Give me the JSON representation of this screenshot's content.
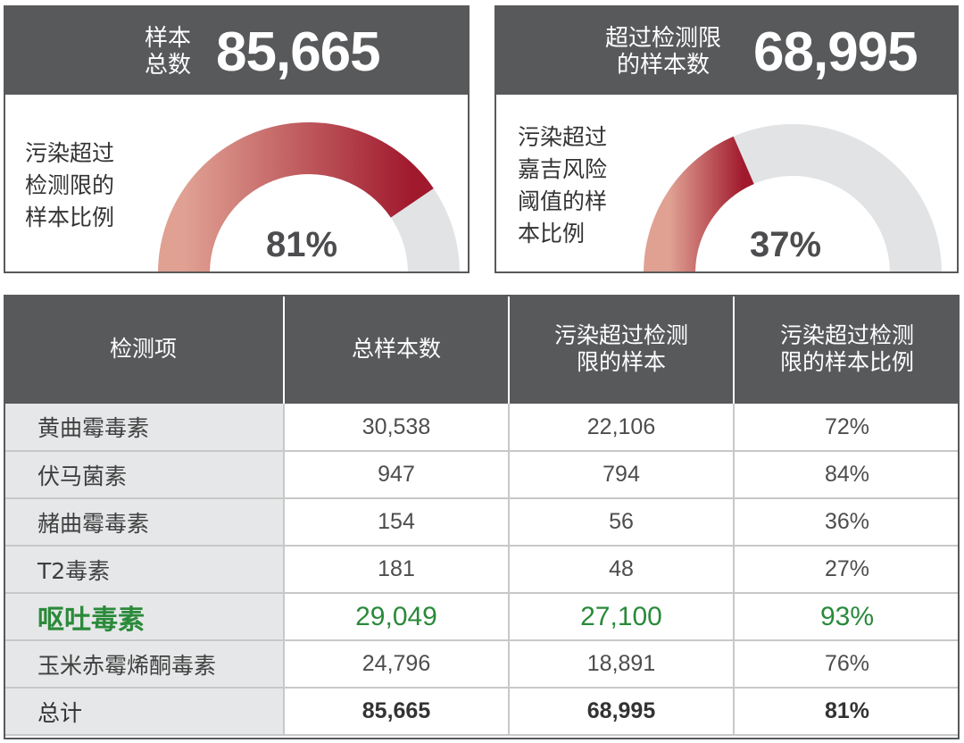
{
  "cards": [
    {
      "label_lines": [
        "样本",
        "总数"
      ],
      "value": "85,665",
      "desc_lines": [
        "污染超过",
        "检测限的",
        "样本比例"
      ],
      "percent": 81,
      "percent_text": "81%"
    },
    {
      "label_lines": [
        "超过检测限",
        "的样本数"
      ],
      "value": "68,995",
      "desc_lines": [
        "污染超过",
        "嘉吉风险",
        "阈值的样",
        "本比例"
      ],
      "percent": 37,
      "percent_text": "37%"
    }
  ],
  "colors": {
    "header_bg": "#58595b",
    "gauge_track": "#e2e3e5",
    "gauge_start": "#e0a193",
    "gauge_end": "#a0192d",
    "highlight": "#2a8a3a",
    "name_col_bg": "#e6e7e8"
  },
  "table": {
    "headers": [
      [
        "检测项"
      ],
      [
        "总样本数"
      ],
      [
        "污染超过检测",
        "限的样本"
      ],
      [
        "污染超过检测",
        "限的样本比例"
      ]
    ],
    "rows": [
      [
        "黄曲霉毒素",
        "30,538",
        "22,106",
        "72%"
      ],
      [
        "伏马菌素",
        "947",
        "794",
        "84%"
      ],
      [
        "赭曲霉毒素",
        "154",
        "56",
        "36%"
      ],
      [
        "T2毒素",
        "181",
        "48",
        "27%"
      ],
      [
        "呕吐毒素",
        "29,049",
        "27,100",
        "93%"
      ],
      [
        "玉米赤霉烯酮毒素",
        "24,796",
        "18,891",
        "76%"
      ],
      [
        "总计",
        "85,665",
        "68,995",
        "81%"
      ]
    ]
  },
  "chart_data": [
    {
      "type": "gauge",
      "title": "样本总数 85,665",
      "label": "污染超过检测限的样本比例",
      "value": 81,
      "max": 100
    },
    {
      "type": "gauge",
      "title": "超过检测限的样本数 68,995",
      "label": "污染超过嘉吉风险阈值的样本比例",
      "value": 37,
      "max": 100
    },
    {
      "type": "table",
      "columns": [
        "检测项",
        "总样本数",
        "污染超过检测限的样本",
        "污染超过检测限的样本比例"
      ],
      "rows": [
        [
          "黄曲霉毒素",
          30538,
          22106,
          72
        ],
        [
          "伏马菌素",
          947,
          794,
          84
        ],
        [
          "赭曲霉毒素",
          154,
          56,
          36
        ],
        [
          "T2毒素",
          181,
          48,
          27
        ],
        [
          "呕吐毒素",
          29049,
          27100,
          93
        ],
        [
          "玉米赤霉烯酮毒素",
          24796,
          18891,
          76
        ],
        [
          "总计",
          85665,
          68995,
          81
        ]
      ]
    }
  ]
}
